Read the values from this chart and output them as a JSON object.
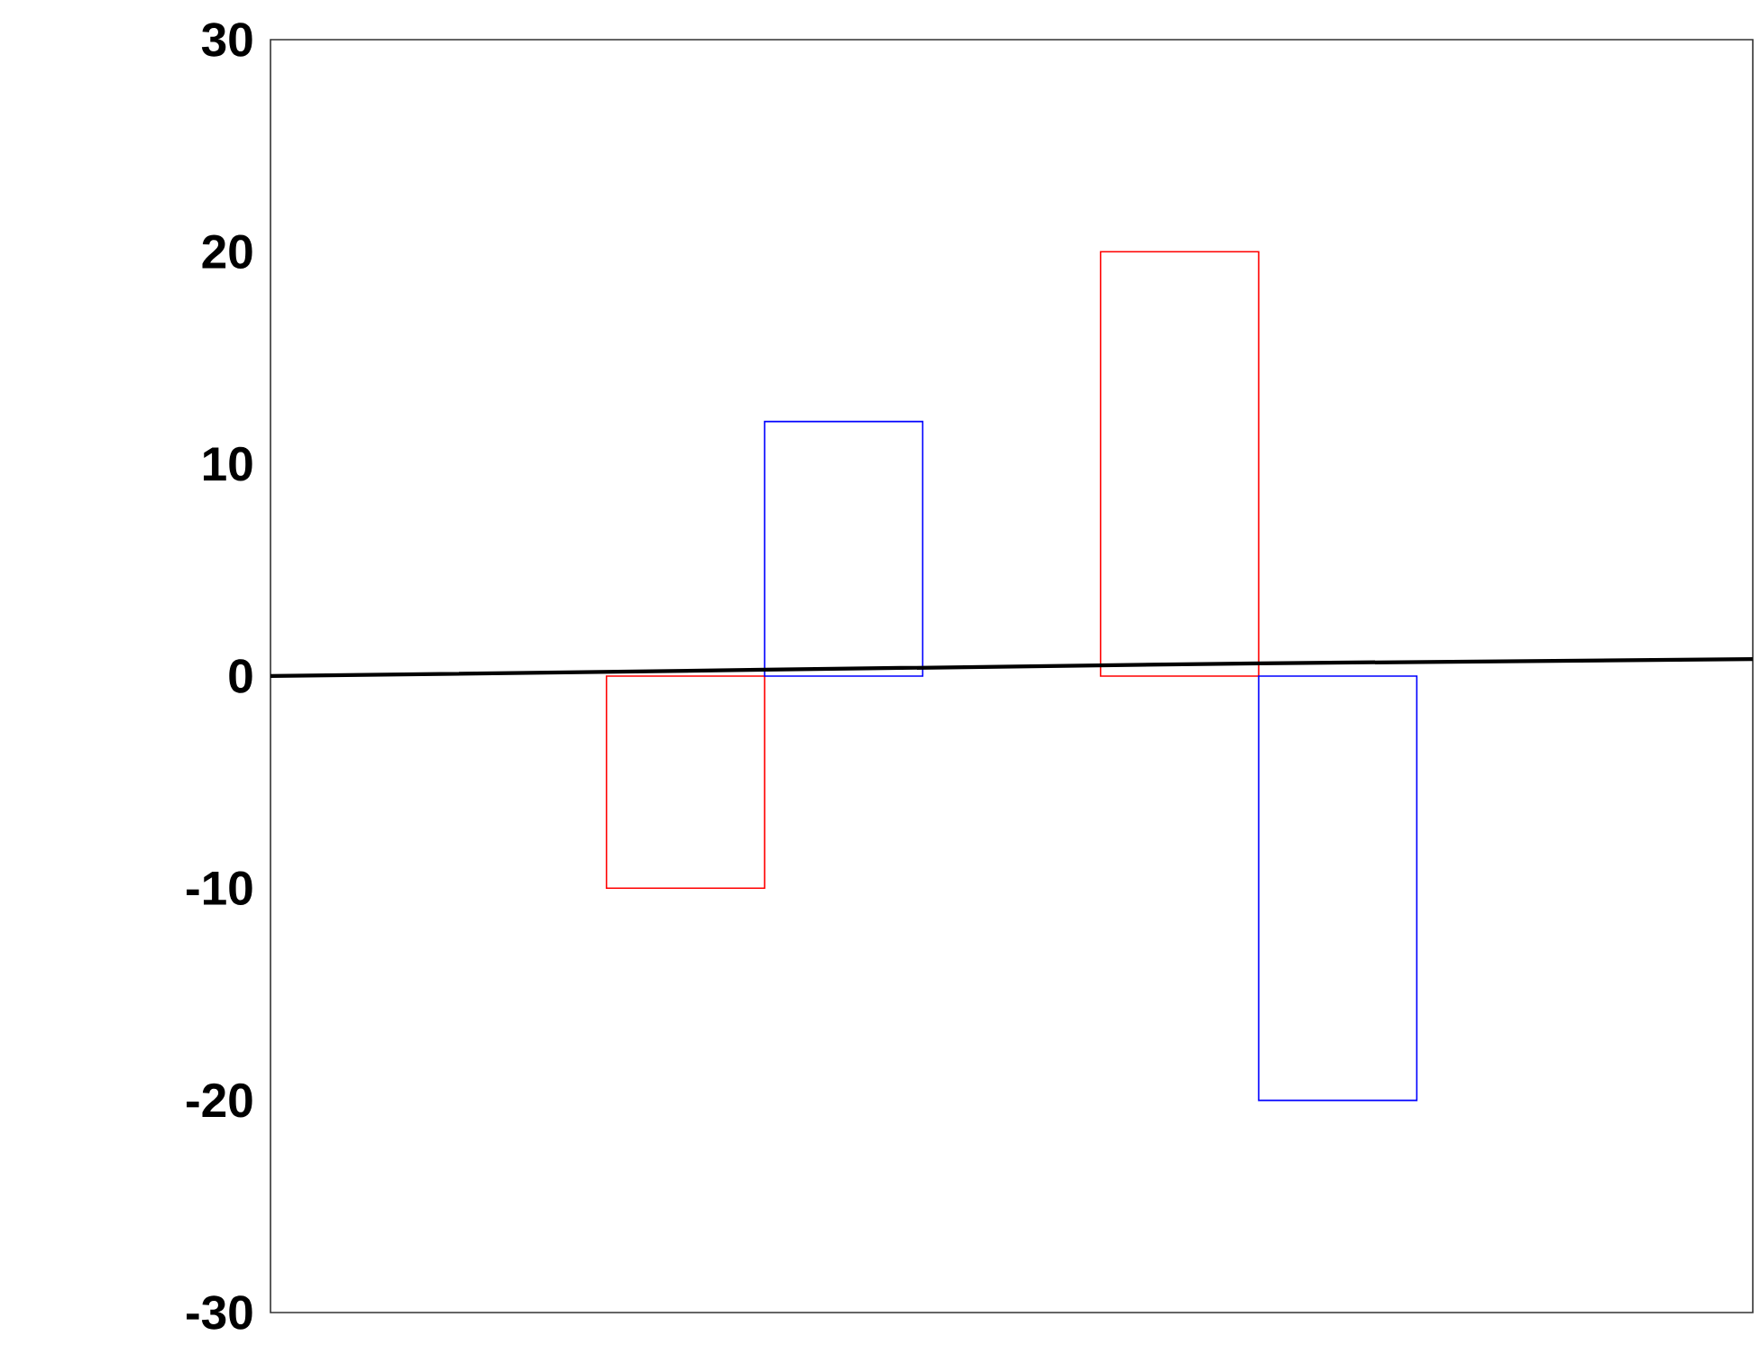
{
  "chart_data": {
    "type": "bar",
    "categories": [
      null,
      null,
      null,
      null
    ],
    "series": [
      {
        "color": "#ff0000",
        "values": [
          null,
          -10,
          20,
          null
        ]
      },
      {
        "color": "#0000ff",
        "values": [
          null,
          12,
          -20,
          null
        ]
      },
      {
        "type": "line",
        "color": "#000000",
        "values": [
          0,
          0.3,
          0.6,
          0.8
        ]
      }
    ],
    "ylim": [
      -30,
      30
    ],
    "yticks": [
      -30,
      -20,
      -10,
      0,
      10,
      20,
      30
    ],
    "grid": false,
    "tick_labels": "y"
  }
}
